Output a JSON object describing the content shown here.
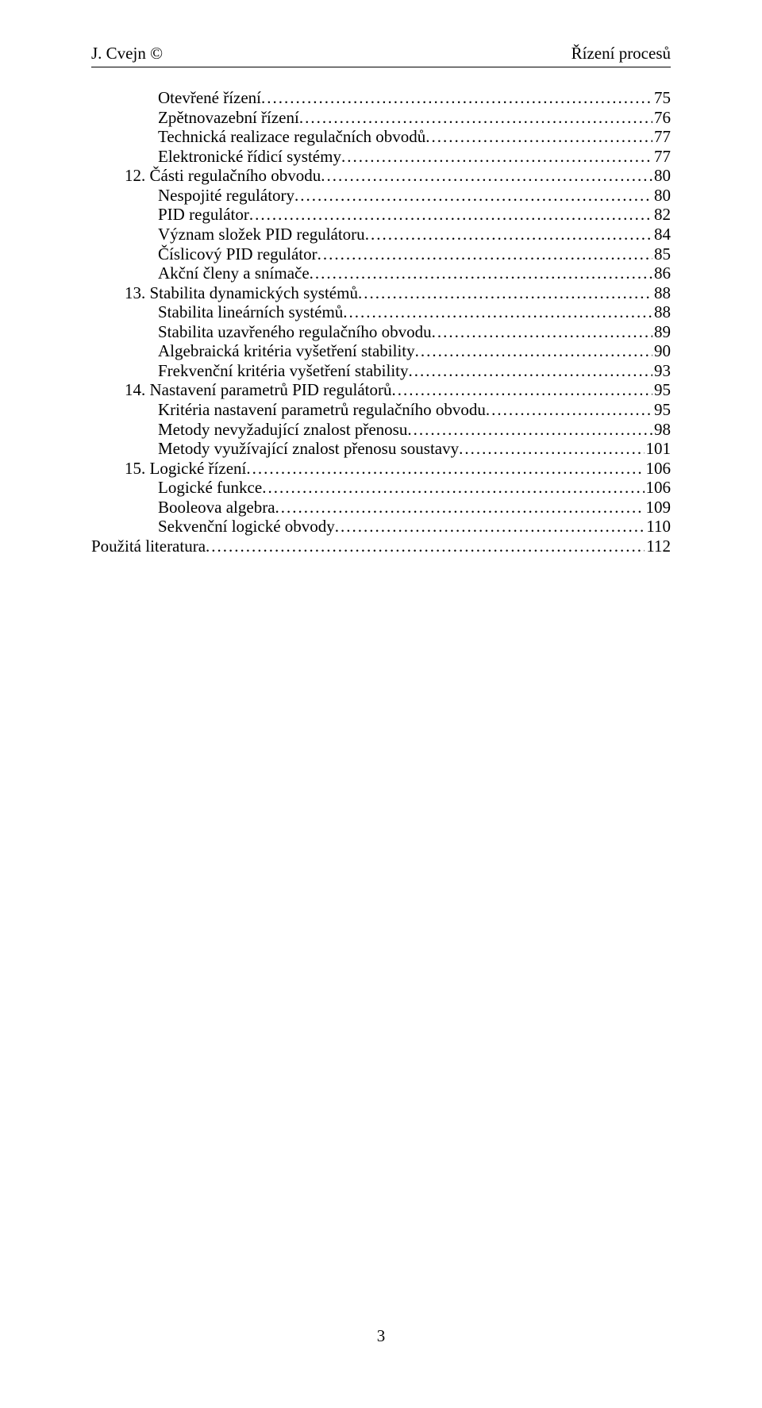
{
  "header": {
    "left": "J. Cvejn ©",
    "right": "Řízení procesů"
  },
  "toc_lines": [
    {
      "indent": 2,
      "label": "Otevřené řízení",
      "page": "75"
    },
    {
      "indent": 2,
      "label": "Zpětnovazební řízení",
      "page": "76"
    },
    {
      "indent": 2,
      "label": "Technická realizace regulačních obvodů",
      "page": "77"
    },
    {
      "indent": 2,
      "label": "Elektronické řídicí systémy",
      "page": "77"
    },
    {
      "indent": 1,
      "label": "12. Části regulačního obvodu",
      "page": "80"
    },
    {
      "indent": 2,
      "label": "Nespojité regulátory",
      "page": "80"
    },
    {
      "indent": 2,
      "label": "PID regulátor",
      "page": "82"
    },
    {
      "indent": 2,
      "label": "Význam složek PID regulátoru",
      "page": "84"
    },
    {
      "indent": 2,
      "label": "Číslicový PID regulátor",
      "page": "85"
    },
    {
      "indent": 2,
      "label": "Akční členy a snímače",
      "page": "86"
    },
    {
      "indent": 1,
      "label": "13. Stabilita dynamických systémů",
      "page": "88"
    },
    {
      "indent": 2,
      "label": "Stabilita lineárních systémů",
      "page": "88"
    },
    {
      "indent": 2,
      "label": "Stabilita uzavřeného regulačního obvodu",
      "page": "89"
    },
    {
      "indent": 2,
      "label": "Algebraická kritéria vyšetření stability",
      "page": "90"
    },
    {
      "indent": 2,
      "label": "Frekvenční kritéria vyšetření stability",
      "page": "93"
    },
    {
      "indent": 1,
      "label": "14. Nastavení parametrů PID regulátorů",
      "page": "95"
    },
    {
      "indent": 2,
      "label": "Kritéria nastavení parametrů regulačního obvodu",
      "page": "95"
    },
    {
      "indent": 2,
      "label": "Metody nevyžadující znalost přenosu",
      "page": "98"
    },
    {
      "indent": 2,
      "label": "Metody využívající znalost přenosu soustavy",
      "page": "101"
    },
    {
      "indent": 1,
      "label": "15. Logické řízení",
      "page": "106"
    },
    {
      "indent": 2,
      "label": "Logické funkce",
      "page": "106"
    },
    {
      "indent": 2,
      "label": "Booleova algebra",
      "page": "109"
    },
    {
      "indent": 2,
      "label": "Sekvenční logické obvody",
      "page": "110"
    },
    {
      "indent": 0,
      "label": "Použitá literatura",
      "page": "112"
    }
  ],
  "page_number": "3"
}
